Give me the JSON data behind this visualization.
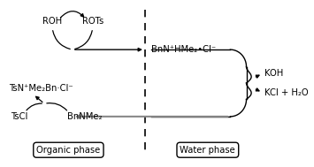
{
  "bg_color": "#ffffff",
  "organic_label": "Organic phase",
  "water_label": "Water phase",
  "roh_label": "ROH",
  "rots_label": "ROTs",
  "tsn_label": "TsN⁺Me₂Bn·Cl⁻",
  "tscl_label": "TsCl",
  "bnnme2_label": "BnNMe₂",
  "bnn_label": "BnN⁺HMe₂•Cl⁻",
  "koh_label": "KOH",
  "kcl_label": "KCl + H₂O",
  "font_size": 7.2
}
